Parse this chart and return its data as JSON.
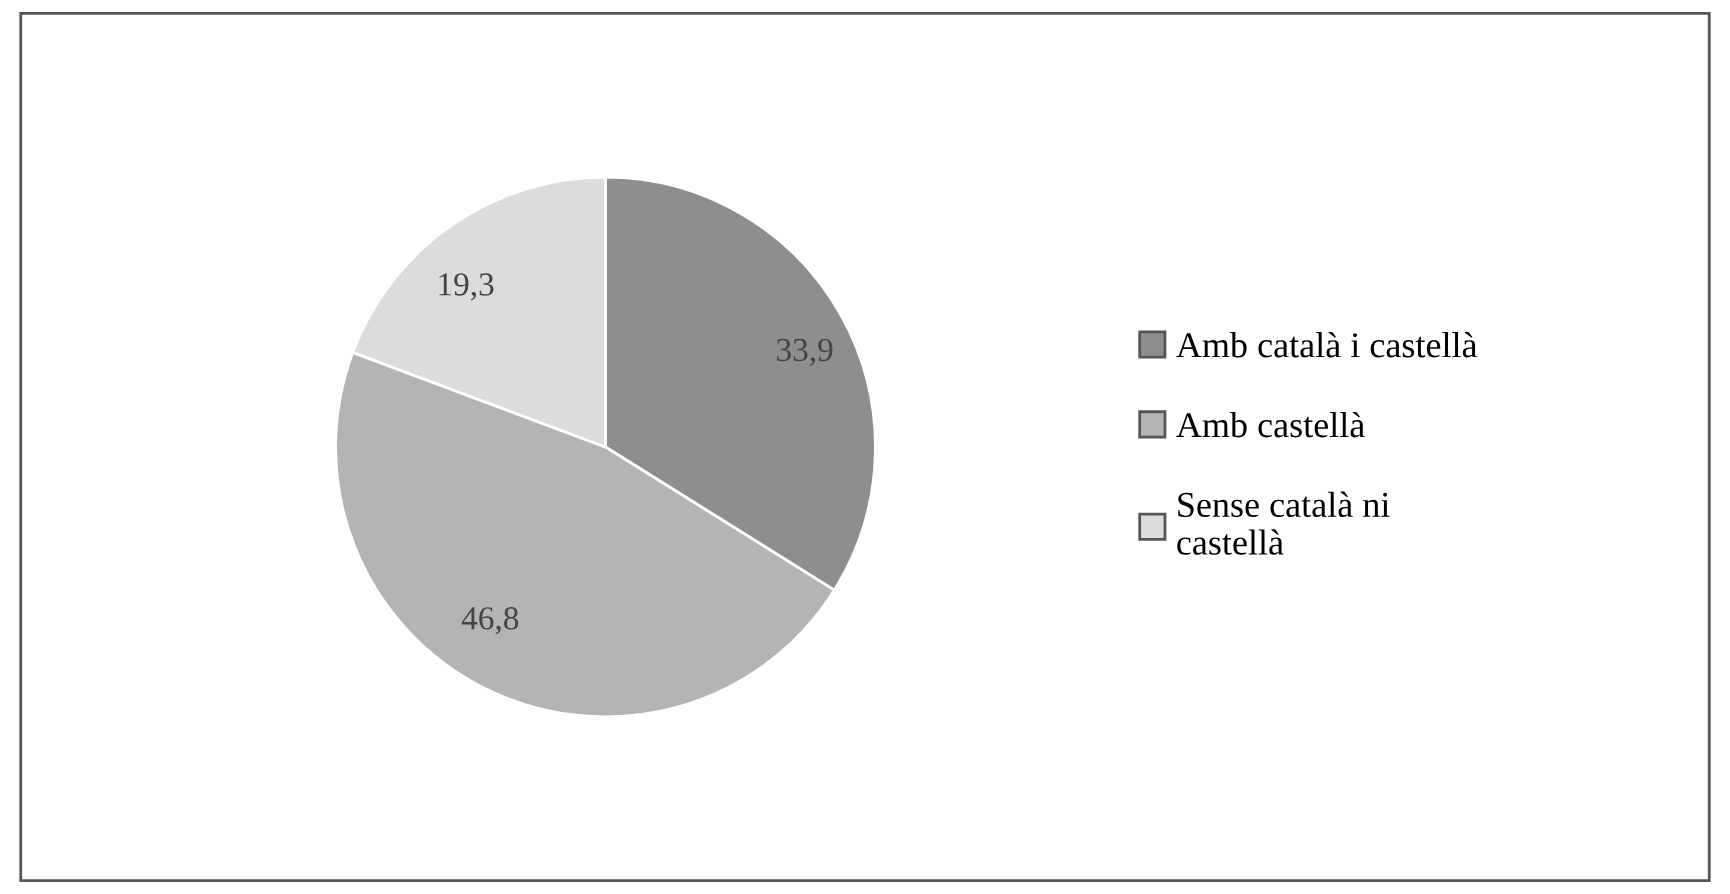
{
  "chart_data": {
    "type": "pie",
    "categories": [
      "Amb català i castellà",
      "Amb castellà",
      "Sense català ni\ncastellà"
    ],
    "values": [
      33.9,
      46.8,
      19.3
    ],
    "value_labels": [
      "33,9",
      "46,8",
      "19,3"
    ],
    "colors": [
      "#8e8e8e",
      "#b4b4b4",
      "#dcdcdc"
    ],
    "legend": "right"
  }
}
